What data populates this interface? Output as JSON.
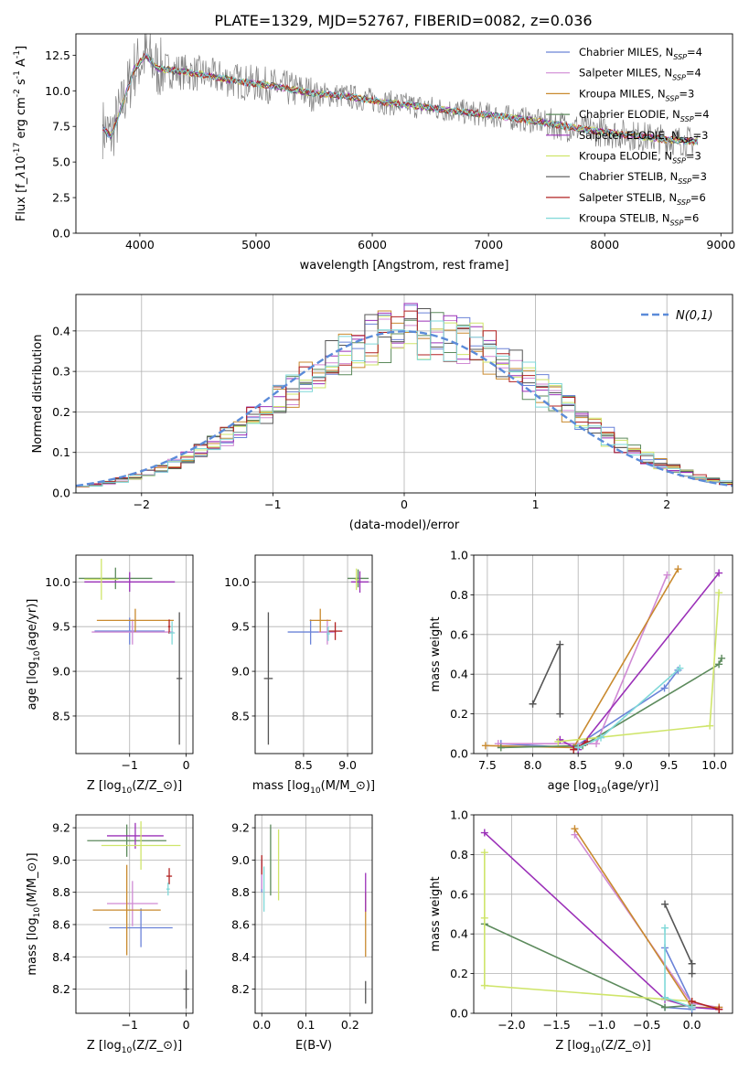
{
  "figure_title": "PLATE=1329, MJD=52767, FIBERID=0082, z=0.036",
  "models": [
    {
      "label": "Chabrier MILES, N$_{SSP}$=4",
      "color": "#6b83d8"
    },
    {
      "label": "Salpeter MILES, N$_{SSP}$=4",
      "color": "#d08ad4"
    },
    {
      "label": "Kroupa MILES, N$_{SSP}$=3",
      "color": "#c98a2f"
    },
    {
      "label": "Chabrier ELODIE, N$_{SSP}$=4",
      "color": "#5c8a5c"
    },
    {
      "label": "Salpeter ELODIE, N$_{SSP}$=3",
      "color": "#9b30b8"
    },
    {
      "label": "Kroupa ELODIE, N$_{SSP}$=3",
      "color": "#cfe56a"
    },
    {
      "label": "Chabrier STELIB, N$_{SSP}$=3",
      "color": "#555555"
    },
    {
      "label": "Salpeter STELIB, N$_{SSP}$=6",
      "color": "#b22222"
    },
    {
      "label": "Kroupa STELIB, N$_{SSP}$=6",
      "color": "#7fd8d8"
    }
  ],
  "chart_data": [
    {
      "id": "spectrum",
      "type": "line",
      "title": "PLATE=1329, MJD=52767, FIBERID=0082, z=0.036",
      "xlabel": "wavelength [Angstrom, rest frame]",
      "ylabel": "Flux [f$_\\lambda$10$^{-17}$ erg cm$^{-2}$ s$^{-1}$ A$^{-1}$]",
      "xlim": [
        3450,
        9100
      ],
      "ylim": [
        0,
        14
      ],
      "xticks": [
        4000,
        5000,
        6000,
        7000,
        8000,
        9000
      ],
      "yticks": [
        0.0,
        2.5,
        5.0,
        7.5,
        10.0,
        12.5
      ],
      "grid": false,
      "legend": "top-right",
      "data_color": "#808080",
      "continuum": {
        "x": [
          3680,
          3750,
          3850,
          3950,
          4050,
          4150,
          4300,
          4500,
          4700,
          4900,
          5100,
          5300,
          5500,
          5800,
          6100,
          6400,
          6700,
          7000,
          7300,
          7600,
          7900,
          8200,
          8500,
          8800
        ],
        "y": [
          7.4,
          6.8,
          9.0,
          11.5,
          12.5,
          11.6,
          11.4,
          11.2,
          10.9,
          10.6,
          10.4,
          10.1,
          9.8,
          9.6,
          9.2,
          8.9,
          8.6,
          8.3,
          8.0,
          7.6,
          7.2,
          6.9,
          6.6,
          6.4
        ]
      }
    },
    {
      "id": "residuals",
      "type": "step",
      "xlabel": "(data-model)/error",
      "ylabel": "Normed distribution",
      "xlim": [
        -2.5,
        2.5
      ],
      "ylim": [
        0,
        0.49
      ],
      "xticks": [
        -2,
        -1,
        0,
        1,
        2
      ],
      "yticks": [
        0.0,
        0.1,
        0.2,
        0.3,
        0.4
      ],
      "grid": true,
      "legend": "top-right",
      "reference_label": "$\\mathcal{N}(0,1)$",
      "reference_color": "#5b8bd9",
      "bin_width": 0.1
    },
    {
      "id": "age-vs-Z",
      "type": "errorbar",
      "xlabel": "Z [log$_{10}$(Z/Z$_\\odot$)]",
      "ylabel": "age  [log$_{10}$(age/yr)]",
      "xlim": [
        -1.95,
        0.12
      ],
      "ylim": [
        8.08,
        10.3
      ],
      "xticks": [
        -1,
        0
      ],
      "yticks": [
        8.5,
        9.0,
        9.5,
        10.0
      ],
      "grid": true,
      "points": [
        {
          "model": 0,
          "x": -1.0,
          "y": 9.45,
          "xerr": 0.62,
          "yerr": 0.15
        },
        {
          "model": 1,
          "x": -0.95,
          "y": 9.44,
          "xerr": 0.72,
          "yerr": 0.14
        },
        {
          "model": 2,
          "x": -0.9,
          "y": 9.57,
          "xerr": 0.68,
          "yerr": 0.13
        },
        {
          "model": 3,
          "x": -1.25,
          "y": 10.04,
          "xerr": 0.65,
          "yerr": 0.12
        },
        {
          "model": 4,
          "x": -1.0,
          "y": 10.0,
          "xerr": 0.8,
          "yerr": 0.11
        },
        {
          "model": 5,
          "x": -1.5,
          "y": 10.03,
          "xerr": 0.3,
          "yerr": 0.23
        },
        {
          "model": 6,
          "x": -0.12,
          "y": 8.92,
          "xerr": 0.05,
          "yerr": 0.74
        },
        {
          "model": 7,
          "x": -0.3,
          "y": 9.5,
          "xerr": 0.02,
          "yerr": 0.08
        },
        {
          "model": 8,
          "x": -0.25,
          "y": 9.43,
          "xerr": 0.05,
          "yerr": 0.13
        }
      ]
    },
    {
      "id": "age-vs-mass",
      "type": "errorbar",
      "xlabel": "mass [log$_{10}$(M/M$_\\odot$)]",
      "ylabel": "",
      "xlim": [
        7.95,
        9.28
      ],
      "ylim": [
        8.08,
        10.3
      ],
      "xticks": [
        8.5,
        9.0
      ],
      "yticks": [
        8.5,
        9.0,
        9.5,
        10.0
      ],
      "grid": true,
      "points": [
        {
          "model": 0,
          "x": 8.58,
          "y": 9.44,
          "xerr": 0.26,
          "yerr": 0.14
        },
        {
          "model": 1,
          "x": 8.77,
          "y": 9.44,
          "xerr": 0.1,
          "yerr": 0.14
        },
        {
          "model": 2,
          "x": 8.69,
          "y": 9.57,
          "xerr": 0.12,
          "yerr": 0.13
        },
        {
          "model": 3,
          "x": 9.12,
          "y": 10.04,
          "xerr": 0.12,
          "yerr": 0.1
        },
        {
          "model": 4,
          "x": 9.14,
          "y": 10.0,
          "xerr": 0.1,
          "yerr": 0.12
        },
        {
          "model": 5,
          "x": 9.1,
          "y": 10.03,
          "xerr": 0.02,
          "yerr": 0.12
        },
        {
          "model": 6,
          "x": 8.1,
          "y": 8.92,
          "xerr": 0.05,
          "yerr": 0.74
        },
        {
          "model": 7,
          "x": 8.86,
          "y": 9.45,
          "xerr": 0.08,
          "yerr": 0.1
        },
        {
          "model": 8,
          "x": 8.78,
          "y": 9.42,
          "xerr": 0.02,
          "yerr": 0.08
        }
      ]
    },
    {
      "id": "weight-vs-age",
      "type": "line",
      "xlabel": "age  [log$_{10}$(age/yr)]",
      "ylabel": "mass weight",
      "xlim": [
        7.35,
        10.2
      ],
      "ylim": [
        0,
        1.0
      ],
      "xticks": [
        7.5,
        8.0,
        8.5,
        9.0,
        9.5,
        10.0
      ],
      "yticks": [
        0.0,
        0.2,
        0.4,
        0.6,
        0.8,
        1.0
      ],
      "grid": true,
      "series": [
        {
          "model": 0,
          "x": [
            7.65,
            8.45,
            9.45,
            9.6
          ],
          "y": [
            0.05,
            0.03,
            0.33,
            0.42
          ]
        },
        {
          "model": 1,
          "x": [
            7.62,
            8.7,
            9.48
          ],
          "y": [
            0.05,
            0.05,
            0.9
          ]
        },
        {
          "model": 2,
          "x": [
            7.48,
            8.45,
            9.6
          ],
          "y": [
            0.04,
            0.03,
            0.93
          ]
        },
        {
          "model": 3,
          "x": [
            7.65,
            8.55,
            10.05,
            10.08
          ],
          "y": [
            0.03,
            0.04,
            0.45,
            0.48
          ]
        },
        {
          "model": 4,
          "x": [
            8.3,
            8.5,
            10.05
          ],
          "y": [
            0.07,
            0.02,
            0.91
          ]
        },
        {
          "model": 5,
          "x": [
            8.28,
            9.95,
            10.05
          ],
          "y": [
            0.06,
            0.14,
            0.81
          ]
        },
        {
          "model": 6,
          "x": [
            8.0,
            8.3,
            8.3
          ],
          "y": [
            0.25,
            0.55,
            0.2
          ]
        },
        {
          "model": 7,
          "x": [
            8.45,
            8.6
          ],
          "y": [
            0.02,
            0.06
          ]
        },
        {
          "model": 8,
          "x": [
            8.5,
            8.75,
            9.62
          ],
          "y": [
            0.03,
            0.08,
            0.43
          ]
        }
      ]
    },
    {
      "id": "mass-vs-Z",
      "type": "errorbar",
      "xlabel": "Z [log$_{10}$(Z/Z$_\\odot$)]",
      "ylabel": "mass [log$_{10}$(M/M$_\\odot$)]",
      "xlim": [
        -1.95,
        0.12
      ],
      "ylim": [
        8.05,
        9.28
      ],
      "xticks": [
        -1,
        0
      ],
      "yticks": [
        8.2,
        8.4,
        8.6,
        8.8,
        9.0,
        9.2
      ],
      "grid": true,
      "points": [
        {
          "model": 0,
          "x": -0.8,
          "y": 8.58,
          "xerr": 0.56,
          "yerr": 0.12
        },
        {
          "model": 1,
          "x": -0.95,
          "y": 8.73,
          "xerr": 0.45,
          "yerr": 0.14
        },
        {
          "model": 2,
          "x": -1.05,
          "y": 8.69,
          "xerr": 0.6,
          "yerr": 0.28
        },
        {
          "model": 3,
          "x": -1.05,
          "y": 9.12,
          "xerr": 0.7,
          "yerr": 0.1
        },
        {
          "model": 4,
          "x": -0.9,
          "y": 9.15,
          "xerr": 0.5,
          "yerr": 0.08
        },
        {
          "model": 5,
          "x": -0.8,
          "y": 9.09,
          "xerr": 0.7,
          "yerr": 0.15
        },
        {
          "model": 6,
          "x": 0.0,
          "y": 8.2,
          "xerr": 0.05,
          "yerr": 0.12
        },
        {
          "model": 7,
          "x": -0.3,
          "y": 8.9,
          "xerr": 0.05,
          "yerr": 0.05
        },
        {
          "model": 8,
          "x": -0.32,
          "y": 8.82,
          "xerr": 0.03,
          "yerr": 0.04
        }
      ]
    },
    {
      "id": "mass-vs-EBV",
      "type": "errorbar",
      "xlabel": "E(B-V)",
      "ylabel": "",
      "xlim": [
        -0.015,
        0.25
      ],
      "ylim": [
        8.05,
        9.28
      ],
      "xticks": [
        0.0,
        0.1,
        0.2
      ],
      "yticks": [
        8.2,
        8.4,
        8.6,
        8.8,
        9.0,
        9.2
      ],
      "grid": true,
      "points": [
        {
          "model": 0,
          "x": 0.0,
          "y": 8.9,
          "xerr": 0.0,
          "yerr": 0.1
        },
        {
          "model": 1,
          "x": 0.0,
          "y": 8.9,
          "xerr": 0.0,
          "yerr": 0.08
        },
        {
          "model": 2,
          "x": 0.235,
          "y": 8.6,
          "xerr": 0.0,
          "yerr": 0.2
        },
        {
          "model": 3,
          "x": 0.02,
          "y": 9.0,
          "xerr": 0.0,
          "yerr": 0.22
        },
        {
          "model": 4,
          "x": 0.235,
          "y": 8.8,
          "xerr": 0.0,
          "yerr": 0.12
        },
        {
          "model": 5,
          "x": 0.038,
          "y": 8.97,
          "xerr": 0.0,
          "yerr": 0.22
        },
        {
          "model": 6,
          "x": 0.235,
          "y": 8.18,
          "xerr": 0.0,
          "yerr": 0.07
        },
        {
          "model": 7,
          "x": 0.0,
          "y": 8.97,
          "xerr": 0.0,
          "yerr": 0.06
        },
        {
          "model": 8,
          "x": 0.005,
          "y": 8.82,
          "xerr": 0.0,
          "yerr": 0.14
        }
      ]
    },
    {
      "id": "weight-vs-Z",
      "type": "line",
      "xlabel": "Z [log$_{10}$(Z/Z$_\\odot$)]",
      "ylabel": "mass weight",
      "xlim": [
        -2.42,
        0.45
      ],
      "ylim": [
        0,
        1.0
      ],
      "xticks": [
        -2.0,
        -1.5,
        -1.0,
        -0.5,
        0.0
      ],
      "yticks": [
        0.0,
        0.2,
        0.4,
        0.6,
        0.8,
        1.0
      ],
      "grid": true,
      "series": [
        {
          "model": 0,
          "x": [
            -0.3,
            0.0,
            0.0,
            -0.3
          ],
          "y": [
            0.03,
            0.02,
            0.05,
            0.33
          ]
        },
        {
          "model": 1,
          "x": [
            -1.3,
            0.0,
            0.3
          ],
          "y": [
            0.9,
            0.05,
            0.03
          ]
        },
        {
          "model": 2,
          "x": [
            -1.3,
            0.0,
            0.3
          ],
          "y": [
            0.93,
            0.03,
            0.03
          ]
        },
        {
          "model": 3,
          "x": [
            -2.3,
            -0.3,
            0.0
          ],
          "y": [
            0.45,
            0.03,
            0.04
          ]
        },
        {
          "model": 4,
          "x": [
            -2.3,
            -0.3,
            0.0,
            0.3
          ],
          "y": [
            0.91,
            0.07,
            0.03,
            0.02
          ]
        },
        {
          "model": 5,
          "x": [
            -2.3,
            -2.3,
            -2.3,
            0.0
          ],
          "y": [
            0.48,
            0.81,
            0.14,
            0.06
          ]
        },
        {
          "model": 6,
          "x": [
            -0.3,
            0.0,
            0.0
          ],
          "y": [
            0.55,
            0.25,
            0.2
          ]
        },
        {
          "model": 7,
          "x": [
            0.0,
            0.3
          ],
          "y": [
            0.06,
            0.02
          ]
        },
        {
          "model": 8,
          "x": [
            -0.3,
            -0.3,
            0.0
          ],
          "y": [
            0.43,
            0.08,
            0.03
          ]
        }
      ]
    }
  ]
}
